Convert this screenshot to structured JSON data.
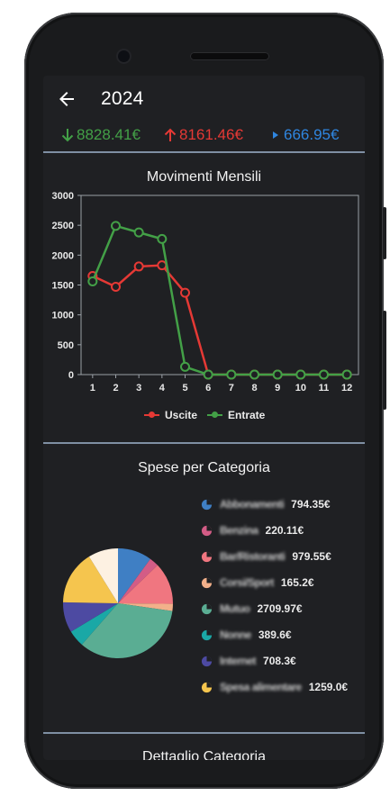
{
  "appbar": {
    "title": "2024"
  },
  "summary": {
    "out_value": "8828.41€",
    "in_value": "8161.46€",
    "balance_value": "666.95€",
    "out_color": "#43a047",
    "in_color": "#e53935",
    "balance_color": "#2f86e0"
  },
  "line_section": {
    "title": "Movimenti Mensili"
  },
  "pie_section": {
    "title": "Spese per Categoria"
  },
  "detail_section": {
    "title": "Dettaglio Categoria"
  },
  "chart_data": [
    {
      "type": "line",
      "title": "Movimenti Mensili",
      "x": [
        1,
        2,
        3,
        4,
        5,
        6,
        7,
        8,
        9,
        10,
        11,
        12
      ],
      "ylim": [
        0,
        3000
      ],
      "yticks": [
        0,
        500,
        1000,
        1500,
        2000,
        2500,
        3000
      ],
      "grid": false,
      "legend_position": "bottom",
      "series": [
        {
          "name": "Uscite",
          "color": "#e53935",
          "values": [
            1650,
            1470,
            1810,
            1830,
            1370,
            0,
            0,
            0,
            0,
            0,
            0,
            0
          ]
        },
        {
          "name": "Entrate",
          "color": "#43a047",
          "values": [
            1560,
            2490,
            2380,
            2270,
            130,
            0,
            0,
            0,
            0,
            0,
            0,
            0
          ]
        }
      ]
    },
    {
      "type": "pie",
      "title": "Spese per Categoria",
      "slices": [
        {
          "label": "Abbonamenti",
          "value": 794.35,
          "display": "794.35€",
          "color": "#3f7fc4"
        },
        {
          "label": "Benzina",
          "value": 220.11,
          "display": "220.11€",
          "color": "#d35c86"
        },
        {
          "label": "Bar/Ristoranti",
          "value": 979.55,
          "display": "979.55€",
          "color": "#f07680"
        },
        {
          "label": "Corsi/Sport",
          "value": 165.2,
          "display": "165.2€",
          "color": "#f2b08a"
        },
        {
          "label": "Mutuo",
          "value": 2709.97,
          "display": "2709.97€",
          "color": "#5aad93"
        },
        {
          "label": "Nonne",
          "value": 389.6,
          "display": "389.6€",
          "color": "#1aa8a6"
        },
        {
          "label": "Internet",
          "value": 708.3,
          "display": "708.3€",
          "color": "#4d4aa2"
        },
        {
          "label": "Spesa alimentare",
          "value": 1259.0,
          "display": "1259.0€",
          "color": "#f5c54e"
        },
        {
          "label": "",
          "value": 700,
          "display": "",
          "color": "#fdf1e2"
        }
      ]
    }
  ]
}
